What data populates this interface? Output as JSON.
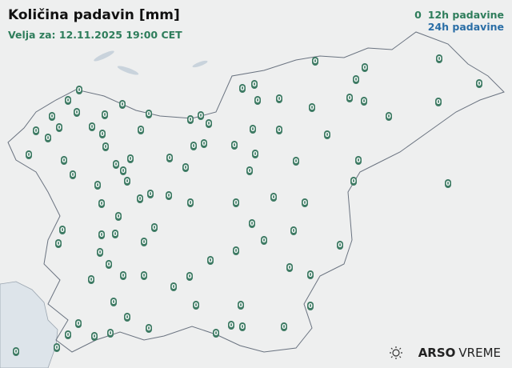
{
  "header": {
    "title": "Količina padavin [mm]",
    "valid_for": "Velja za: 12.11.2025 19:00 CET"
  },
  "legend": {
    "marker_sample": "0",
    "items": [
      {
        "label": "12h padavine",
        "color": "#2e7d5b"
      },
      {
        "label": "24h padavine",
        "color": "#2a6ea6"
      }
    ]
  },
  "logo": {
    "brand": "ARSO",
    "product": "VREME",
    "icon": "sun-cloud-icon"
  },
  "colors": {
    "station_marker": "#3d7a63",
    "background": "#eeefef",
    "border": "#6a7380",
    "sea": "#dde4ea"
  },
  "stations": {
    "values": [
      "0",
      "0",
      "0",
      "0",
      "0",
      "0",
      "0",
      "0",
      "0",
      "0",
      "0",
      "0",
      "0",
      "0",
      "0",
      "0",
      "0",
      "0",
      "0",
      "0",
      "0",
      "0",
      "0",
      "0",
      "0",
      "0",
      "0",
      "0",
      "0",
      "0",
      "0",
      "0",
      "0",
      "0",
      "0",
      "0",
      "0",
      "0",
      "0",
      "0",
      "0",
      "0",
      "0",
      "0",
      "0",
      "0",
      "0",
      "0",
      "0",
      "0",
      "0",
      "0",
      "0",
      "0",
      "0",
      "0",
      "0",
      "0",
      "0",
      "0",
      "0",
      "0",
      "0",
      "0",
      "0",
      "0",
      "0",
      "0",
      "0",
      "0",
      "0",
      "0",
      "0",
      "0",
      "0",
      "0",
      "0",
      "0",
      "0",
      "0",
      "0",
      "0",
      "0",
      "0",
      "0",
      "0",
      "0",
      "0",
      "0",
      "0",
      "0",
      "0",
      "0",
      "0",
      "0",
      "0",
      "0",
      "0",
      "0"
    ]
  }
}
